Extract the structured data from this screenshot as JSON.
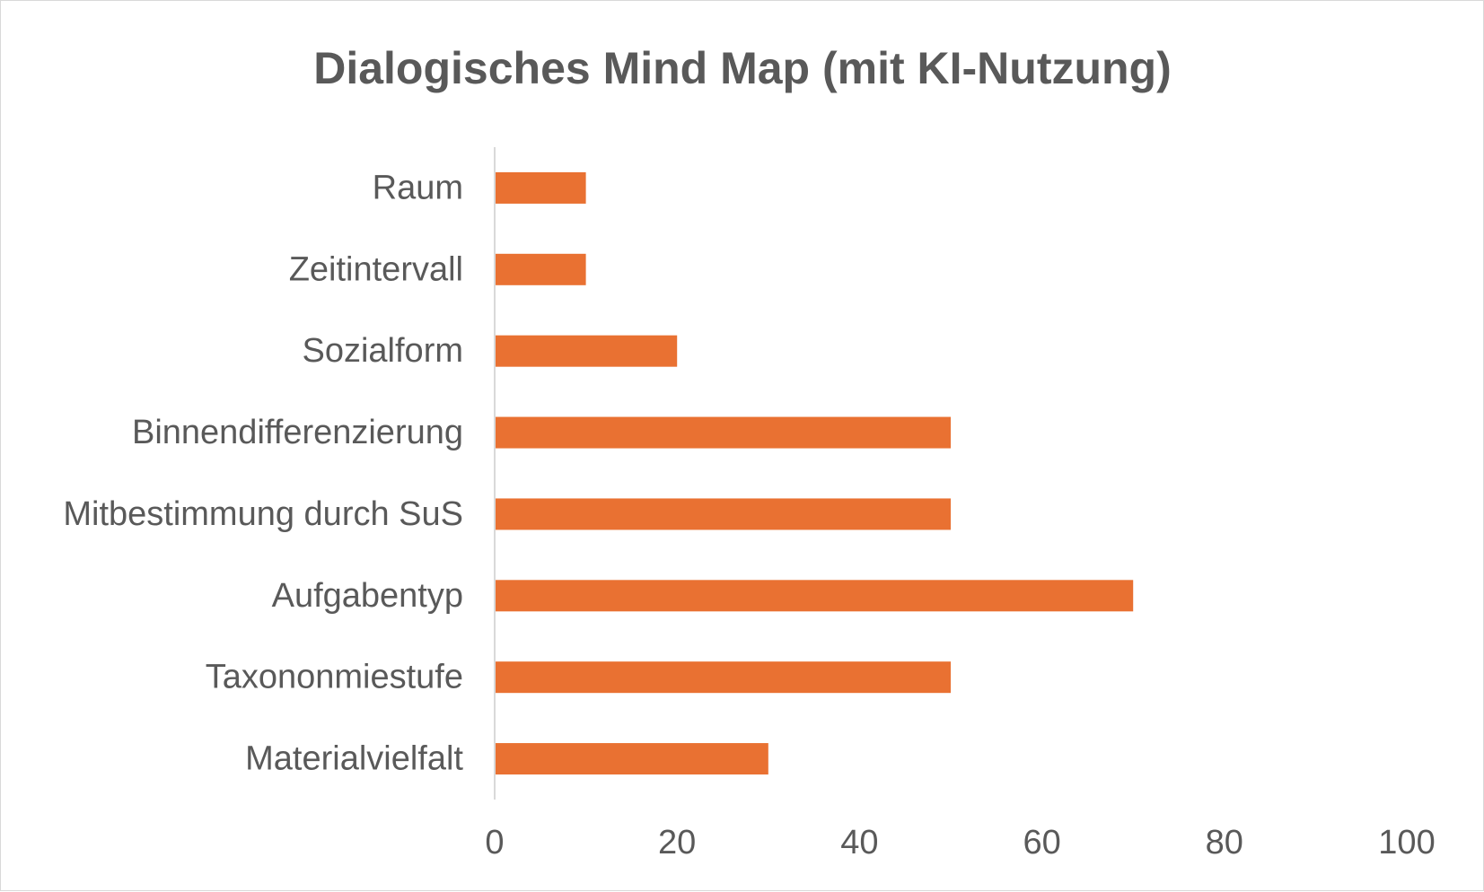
{
  "chart_data": {
    "type": "bar",
    "orientation": "horizontal",
    "title": "Dialogisches Mind Map (mit KI-Nutzung)",
    "xlabel": "",
    "ylabel": "",
    "categories": [
      "Raum",
      "Zeitintervall",
      "Sozialform",
      "Binnendifferenzierung",
      "Mitbestimmung durch SuS",
      "Aufgabentyp",
      "Taxononmiestufe",
      "Materialvielfalt"
    ],
    "values": [
      10,
      10,
      20,
      50,
      50,
      70,
      50,
      30
    ],
    "xlim": [
      0,
      100
    ],
    "x_ticks": [
      0,
      20,
      40,
      60,
      80,
      100
    ],
    "grid": false,
    "legend": "none",
    "bar_color": "#E97132",
    "text_color": "#595959",
    "axis_color": "#d9d9d9"
  }
}
